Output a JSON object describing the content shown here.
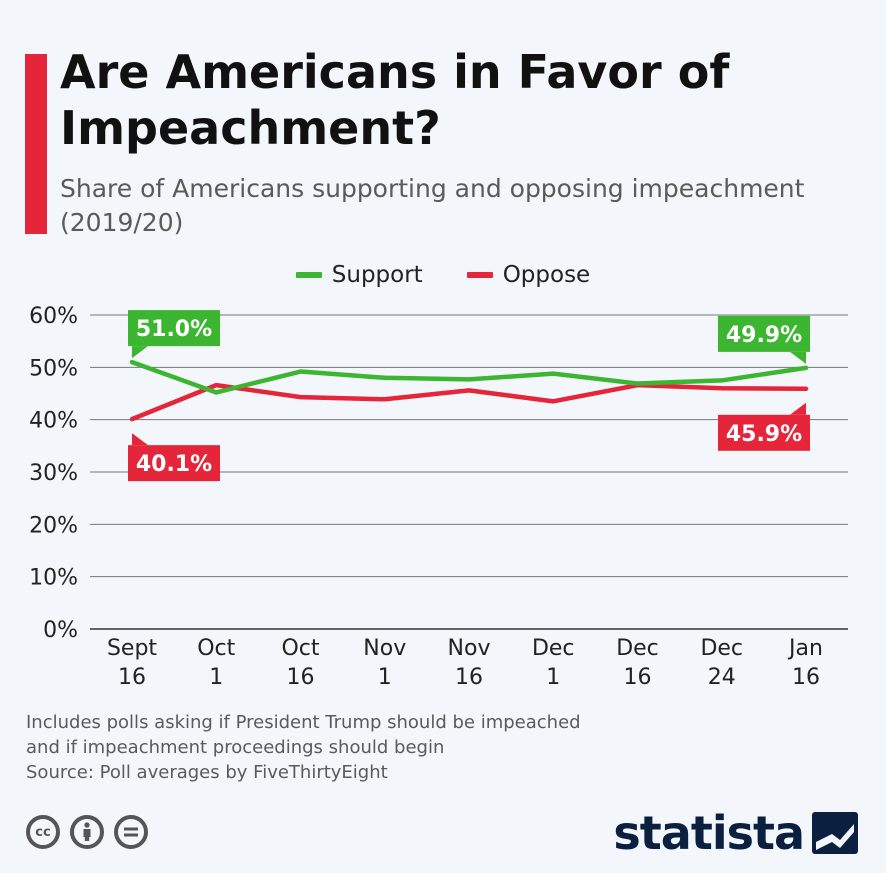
{
  "header": {
    "title": "Are Americans in Favor of Impeachment?",
    "subtitle": "Share of Americans supporting and opposing impeachment (2019/20)"
  },
  "legend": {
    "support_label": "Support",
    "oppose_label": "Oppose"
  },
  "chart_data": {
    "type": "line",
    "categories": [
      [
        "Sept",
        "16"
      ],
      [
        "Oct",
        "1"
      ],
      [
        "Oct",
        "16"
      ],
      [
        "Nov",
        "1"
      ],
      [
        "Nov",
        "16"
      ],
      [
        "Dec",
        "1"
      ],
      [
        "Dec",
        "16"
      ],
      [
        "Dec",
        "24"
      ],
      [
        "Jan",
        "16"
      ]
    ],
    "series": [
      {
        "name": "Support",
        "color": "#3cb531",
        "values": [
          51.0,
          45.2,
          49.2,
          48.0,
          47.7,
          48.8,
          46.9,
          47.5,
          49.9
        ]
      },
      {
        "name": "Oppose",
        "color": "#e4253a",
        "values": [
          40.1,
          46.6,
          44.3,
          43.9,
          45.6,
          43.5,
          46.6,
          46.0,
          45.9
        ]
      }
    ],
    "ylim": [
      0,
      60
    ],
    "yticks": [
      "0%",
      "10%",
      "20%",
      "30%",
      "40%",
      "50%",
      "60%"
    ],
    "ytick_values": [
      0,
      10,
      20,
      30,
      40,
      50,
      60
    ],
    "grid": true,
    "legend_position": "top-center",
    "annotations": [
      {
        "series": "Support",
        "index": 0,
        "text": "51.0%",
        "placement": "above"
      },
      {
        "series": "Oppose",
        "index": 0,
        "text": "40.1%",
        "placement": "below"
      },
      {
        "series": "Support",
        "index": 8,
        "text": "49.9%",
        "placement": "above"
      },
      {
        "series": "Oppose",
        "index": 8,
        "text": "45.9%",
        "placement": "below"
      }
    ]
  },
  "footer": {
    "note_line1": "Includes polls asking if President Trump should be impeached",
    "note_line2": "and if impeachment proceedings should begin",
    "source": "Source: Poll averages by FiveThirtyEight",
    "brand": "statista",
    "license_icons": [
      "cc-icon",
      "by-icon",
      "nd-icon"
    ]
  }
}
